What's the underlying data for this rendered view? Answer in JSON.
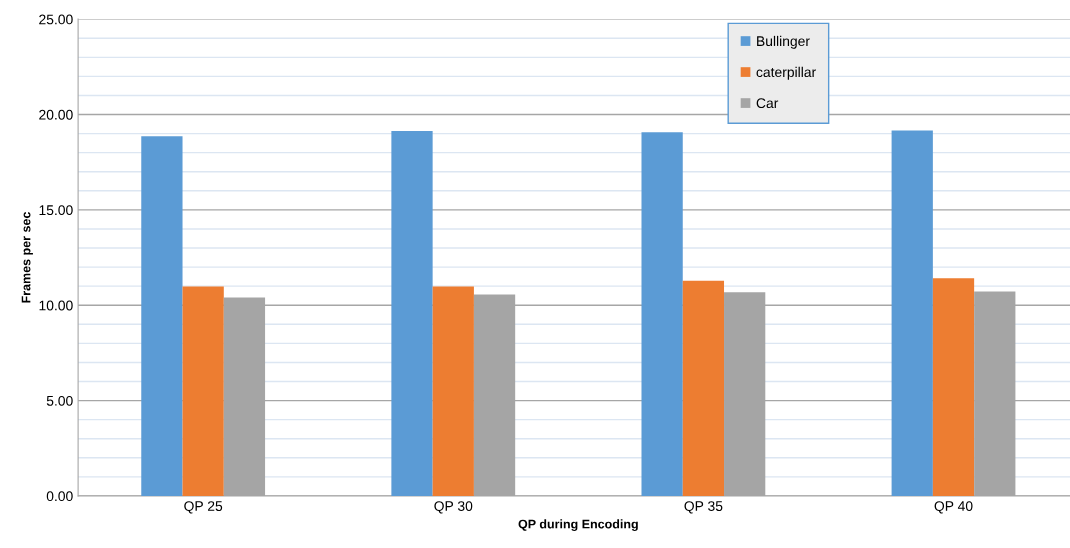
{
  "chart_data": {
    "type": "bar",
    "xlabel": "QP during Encoding",
    "ylabel": "Frames per sec",
    "categories": [
      "QP 25",
      "QP 30",
      "QP 35",
      "QP 40"
    ],
    "series": [
      {
        "name": "Bullinger",
        "color": "#5b9bd5",
        "values": [
          18.86,
          19.14,
          19.07,
          19.16
        ]
      },
      {
        "name": "caterpillar",
        "color": "#ed7d31",
        "values": [
          10.98,
          10.98,
          11.29,
          11.42
        ]
      },
      {
        "name": "Car",
        "color": "#a5a5a5",
        "values": [
          10.4,
          10.56,
          10.68,
          10.72
        ]
      }
    ],
    "ylim": [
      0,
      25
    ],
    "yticks": [
      {
        "value": 0,
        "label": "0.00"
      },
      {
        "value": 5,
        "label": "5.00"
      },
      {
        "value": 10,
        "label": "10.00"
      },
      {
        "value": 15,
        "label": "15.00"
      },
      {
        "value": 20,
        "label": "20.00"
      },
      {
        "value": 25,
        "label": "25.00"
      }
    ],
    "grid": "y",
    "legend": "top"
  }
}
